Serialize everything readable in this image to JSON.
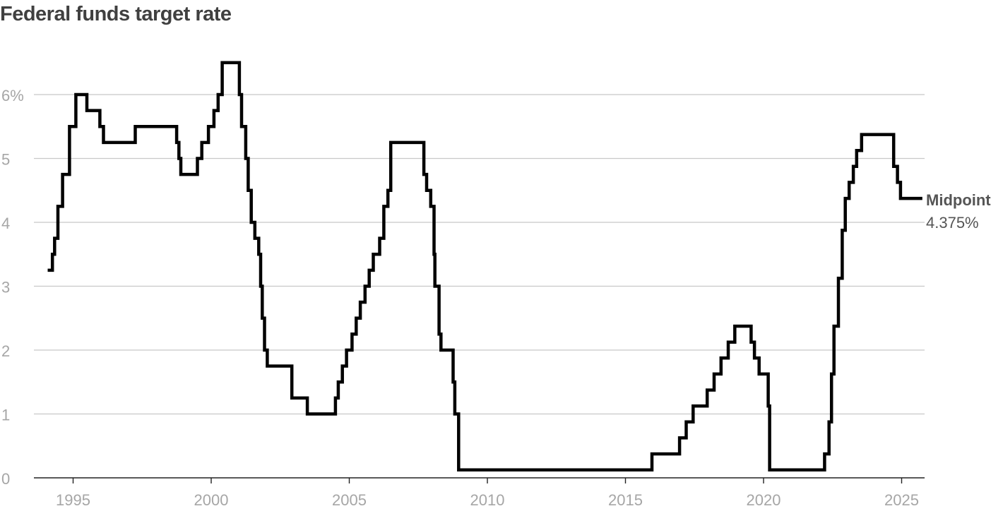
{
  "chart_data": {
    "type": "line",
    "title": "Federal funds target rate",
    "xlabel": "",
    "ylabel": "",
    "ylim": [
      0,
      6.5
    ],
    "xlim": [
      1993.5,
      2026.3
    ],
    "y_ticks": [
      {
        "value": 0,
        "label": "0"
      },
      {
        "value": 1,
        "label": "1"
      },
      {
        "value": 2,
        "label": "2"
      },
      {
        "value": 3,
        "label": "3"
      },
      {
        "value": 4,
        "label": "4"
      },
      {
        "value": 5,
        "label": "5"
      },
      {
        "value": 6,
        "label": "6%"
      }
    ],
    "x_ticks": [
      {
        "value": 1995,
        "label": "1995"
      },
      {
        "value": 2000,
        "label": "2000"
      },
      {
        "value": 2005,
        "label": "2005"
      },
      {
        "value": 2010,
        "label": "2010"
      },
      {
        "value": 2015,
        "label": "2015"
      },
      {
        "value": 2020,
        "label": "2020"
      },
      {
        "value": 2025,
        "label": "2025"
      }
    ],
    "grid": true,
    "legend": "none",
    "line_color": "#000000",
    "series": [
      {
        "x": [
          1994.08,
          1994.25,
          1994.33,
          1994.45,
          1994.62,
          1994.87,
          1995.1,
          1995.5,
          1995.97,
          1996.1,
          1997.25,
          1998.75,
          1998.83,
          1998.9,
          1999.5,
          1999.66,
          1999.9,
          2000.1,
          2000.25,
          2000.4,
          2001.02,
          2001.1,
          2001.25,
          2001.34,
          2001.45,
          2001.58,
          2001.72,
          2001.79,
          2001.85,
          2001.93,
          2002.03,
          2002.92,
          2003.48,
          2004.5,
          2004.6,
          2004.75,
          2004.9,
          2005.1,
          2005.25,
          2005.4,
          2005.57,
          2005.72,
          2005.87,
          2006.1,
          2006.25,
          2006.4,
          2006.5,
          2007.7,
          2007.8,
          2007.95,
          2008.07,
          2008.1,
          2008.25,
          2008.32,
          2008.76,
          2008.82,
          2008.96,
          2015.96,
          2016.96,
          2017.2,
          2017.45,
          2017.96,
          2018.21,
          2018.46,
          2018.72,
          2018.96,
          2019.55,
          2019.67,
          2019.84,
          2020.17,
          2020.22,
          2022.21,
          2022.37,
          2022.46,
          2022.55,
          2022.71,
          2022.85,
          2022.96,
          2023.1,
          2023.25,
          2023.37,
          2023.55,
          2024.71,
          2024.85,
          2024.96
        ],
        "y": [
          3.25,
          3.5,
          3.75,
          4.25,
          4.75,
          5.5,
          6.0,
          5.75,
          5.5,
          5.25,
          5.5,
          5.25,
          5.0,
          4.75,
          5.0,
          5.25,
          5.5,
          5.75,
          6.0,
          6.5,
          6.0,
          5.5,
          5.0,
          4.5,
          4.0,
          3.75,
          3.5,
          3.0,
          2.5,
          2.0,
          1.75,
          1.25,
          1.0,
          1.25,
          1.5,
          1.75,
          2.0,
          2.25,
          2.5,
          2.75,
          3.0,
          3.25,
          3.5,
          3.75,
          4.25,
          4.5,
          5.25,
          4.75,
          4.5,
          4.25,
          3.5,
          3.0,
          2.25,
          2.0,
          1.5,
          1.0,
          0.125,
          0.375,
          0.625,
          0.875,
          1.125,
          1.375,
          1.625,
          1.875,
          2.125,
          2.375,
          2.125,
          1.875,
          1.625,
          1.125,
          0.125,
          0.375,
          0.875,
          1.625,
          2.375,
          3.125,
          3.875,
          4.375,
          4.625,
          4.875,
          5.125,
          5.375,
          4.875,
          4.625,
          4.375
        ],
        "end_x": 2025.75
      }
    ],
    "annotation": {
      "label": "Midpoint",
      "value": "4.375%"
    }
  }
}
